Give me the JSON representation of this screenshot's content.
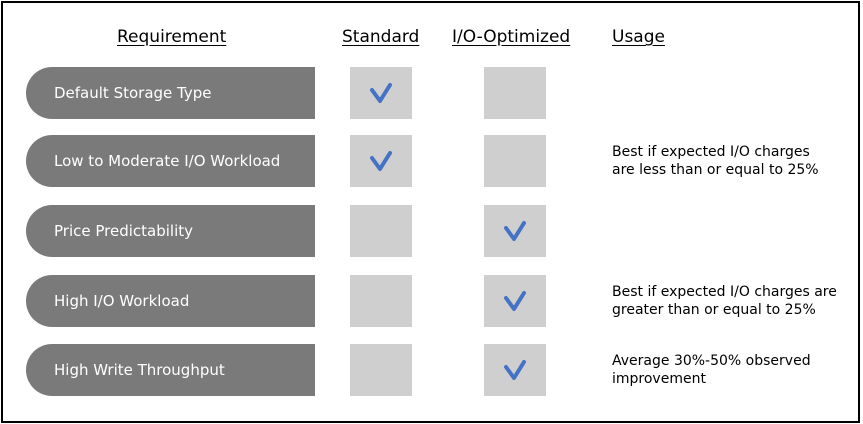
{
  "headers": {
    "requirement": "Requirement",
    "standard": "Standard",
    "io_optimized": "I/O-Optimized",
    "usage": "Usage"
  },
  "check_color": "#4472c4",
  "rows": [
    {
      "requirement": "Default Storage Type",
      "standard": true,
      "io_optimized": false,
      "usage": ""
    },
    {
      "requirement": "Low to Moderate I/O Workload",
      "standard": true,
      "io_optimized": false,
      "usage": "Best if expected I/O charges are less than or equal to 25%"
    },
    {
      "requirement": "Price Predictability",
      "standard": false,
      "io_optimized": true,
      "usage": ""
    },
    {
      "requirement": "High I/O Workload",
      "standard": false,
      "io_optimized": true,
      "usage": "Best if expected I/O charges are greater than or equal to 25%"
    },
    {
      "requirement": "High Write Throughput",
      "standard": false,
      "io_optimized": true,
      "usage": "Average 30%-50% observed improvement"
    }
  ]
}
